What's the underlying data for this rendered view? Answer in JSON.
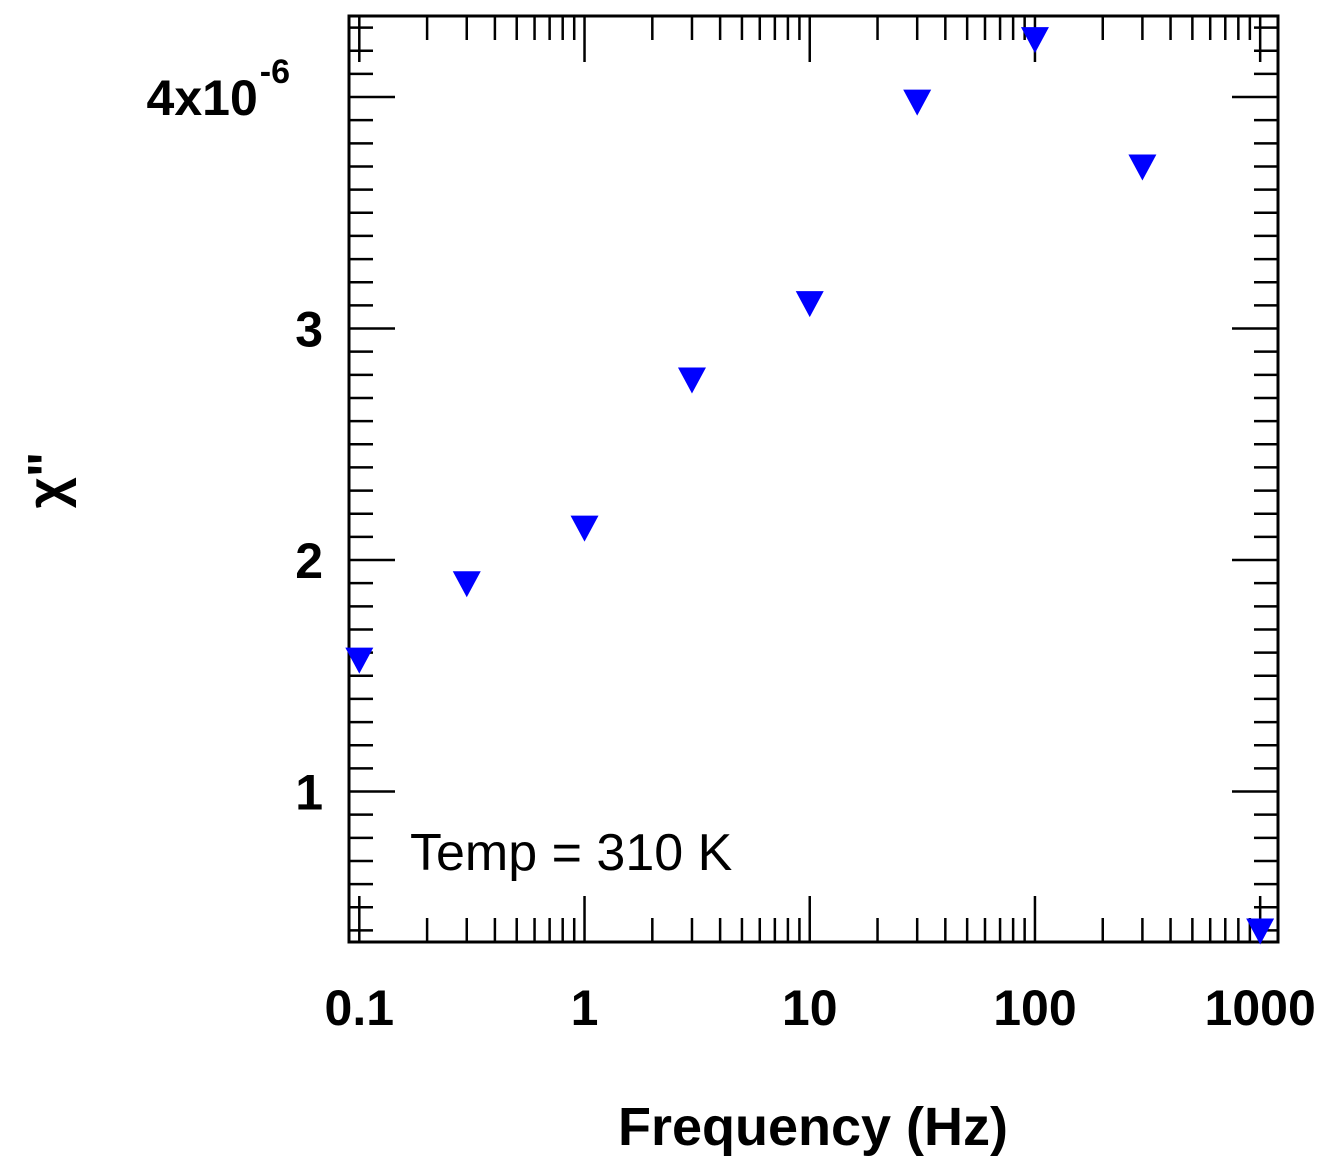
{
  "chart_data": {
    "type": "scatter",
    "title": "",
    "xlabel": "Frequency (Hz)",
    "ylabel": "χ\"",
    "x_scale": "log",
    "xlim": [
      0.09,
      1200
    ],
    "ylim": [
      3.5e-07,
      4.35e-06
    ],
    "x_tick_labels": [
      {
        "value": 0.1,
        "label": "0.1"
      },
      {
        "value": 1,
        "label": "1"
      },
      {
        "value": 10,
        "label": "10"
      },
      {
        "value": 100,
        "label": "100"
      },
      {
        "value": 1000,
        "label": "1000"
      }
    ],
    "y_tick_labels": [
      {
        "value": 1e-06,
        "label": "1"
      },
      {
        "value": 2e-06,
        "label": "2"
      },
      {
        "value": 3e-06,
        "label": "3"
      },
      {
        "value": 4e-06,
        "label": "4x10",
        "superscript": "-6"
      }
    ],
    "annotation": "Temp = 310 K",
    "marker": "down-triangle",
    "marker_color": "#0000ff",
    "grid": false,
    "x": [
      0.1,
      0.3,
      1,
      3,
      10,
      30,
      100,
      300,
      1000
    ],
    "y": [
      1.56e-06,
      1.89e-06,
      2.13e-06,
      2.77e-06,
      3.1e-06,
      3.97e-06,
      4.24e-06,
      3.69e-06,
      3.9e-07
    ]
  }
}
